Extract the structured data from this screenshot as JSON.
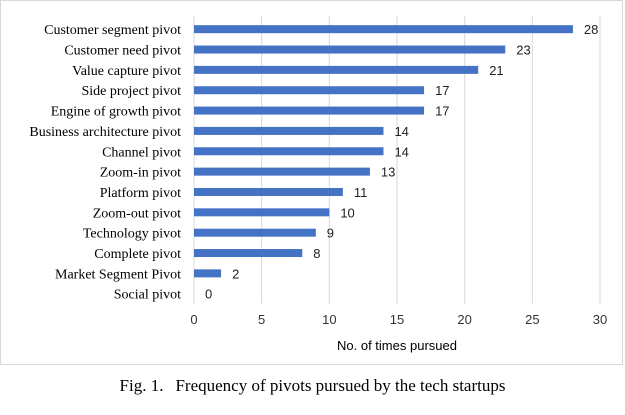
{
  "chart_data": {
    "type": "bar",
    "orientation": "horizontal",
    "categories": [
      "Customer segment pivot",
      "Customer need pivot",
      "Value capture pivot",
      "Side project pivot",
      "Engine of growth pivot",
      "Business architecture pivot",
      "Channel pivot",
      "Zoom-in pivot",
      "Platform pivot",
      "Zoom-out pivot",
      "Technology pivot",
      "Complete pivot",
      "Market Segment Pivot",
      "Social pivot"
    ],
    "values": [
      28,
      23,
      21,
      17,
      17,
      14,
      14,
      13,
      11,
      10,
      9,
      8,
      2,
      0
    ],
    "xlabel": "No. of times pursued",
    "ylabel": "",
    "xlim": [
      0,
      30
    ],
    "xticks": [
      0,
      5,
      10,
      15,
      20,
      25,
      30
    ],
    "grid": true,
    "bar_color": "#4472c4",
    "grid_color": "#d9d9d9"
  },
  "caption": {
    "number": "Fig. 1.",
    "text": "Frequency of pivots pursued by the tech startups"
  }
}
